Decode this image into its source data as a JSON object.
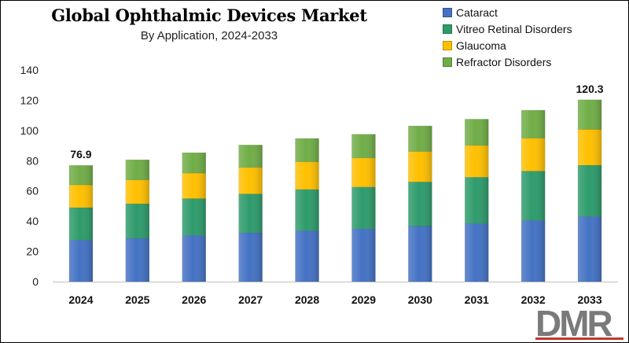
{
  "chart_data": {
    "type": "bar",
    "stacked": true,
    "title": "Global Ophthalmic Devices Market",
    "subtitle": "By Application, 2024-2033",
    "xlabel": "",
    "ylabel": "",
    "ylim": [
      0,
      140
    ],
    "yticks": [
      0,
      20,
      40,
      60,
      80,
      100,
      120,
      140
    ],
    "gridlines": false,
    "legend_position": "top-right",
    "categories": [
      "2024",
      "2025",
      "2026",
      "2027",
      "2028",
      "2029",
      "2030",
      "2031",
      "2032",
      "2033"
    ],
    "series": [
      {
        "name": "Cataract",
        "color": "#4472c4",
        "values": [
          27.5,
          28.6,
          30.6,
          32.3,
          33.7,
          35.0,
          36.7,
          38.4,
          40.5,
          43.0
        ]
      },
      {
        "name": "Vitreo Retinal Disorders",
        "color": "#2e9b6b",
        "values": [
          21.5,
          22.9,
          24.3,
          25.7,
          27.3,
          27.6,
          29.3,
          30.7,
          32.6,
          34.0
        ]
      },
      {
        "name": "Glaucoma",
        "color": "#ffc000",
        "values": [
          15.0,
          15.8,
          16.9,
          17.5,
          18.3,
          19.2,
          20.1,
          21.0,
          21.8,
          23.7
        ]
      },
      {
        "name": "Refractor Disorders",
        "color": "#70ad47",
        "values": [
          12.9,
          13.3,
          13.5,
          14.9,
          15.4,
          15.7,
          16.9,
          17.4,
          18.5,
          19.6
        ]
      }
    ],
    "data_labels": [
      {
        "category": "2024",
        "text": "76.9"
      },
      {
        "category": "2033",
        "text": "120.3"
      }
    ]
  },
  "logo": {
    "text": "DMR"
  }
}
